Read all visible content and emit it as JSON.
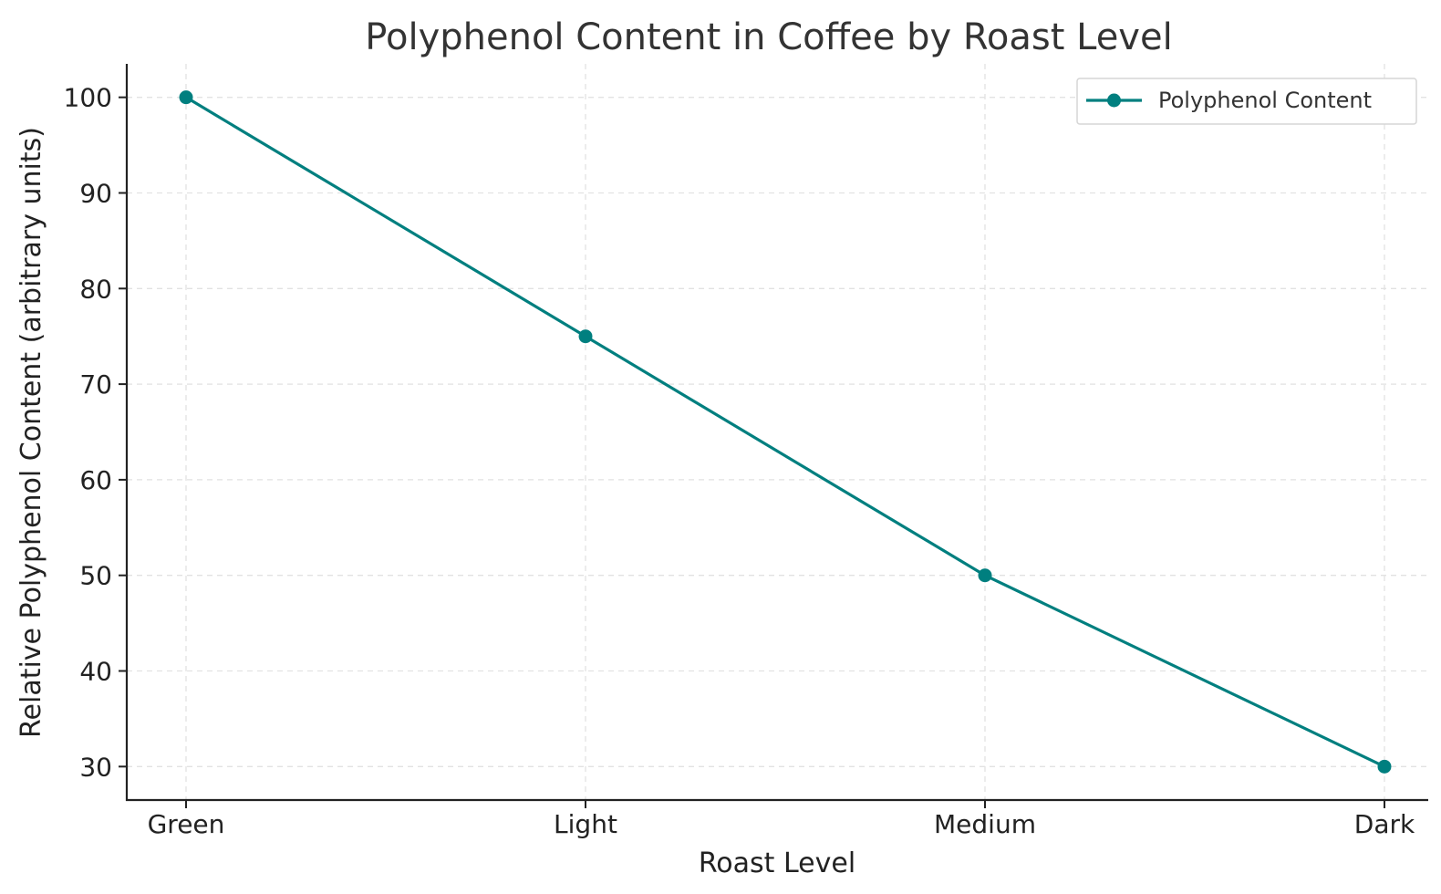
{
  "chart_data": {
    "type": "line",
    "title": "Polyphenol Content in Coffee by Roast Level",
    "xlabel": "Roast Level",
    "ylabel": "Relative Polyphenol Content (arbitrary units)",
    "categories": [
      "Green",
      "Light",
      "Medium",
      "Dark"
    ],
    "series": [
      {
        "name": "Polyphenol Content",
        "values": [
          100,
          75,
          50,
          30
        ],
        "color": "#007f7f",
        "marker": "circle"
      }
    ],
    "yticks": [
      30,
      40,
      50,
      60,
      70,
      80,
      90,
      100
    ],
    "ylim": [
      26.5,
      103.5
    ],
    "grid": true,
    "legend_position": "top-right"
  }
}
